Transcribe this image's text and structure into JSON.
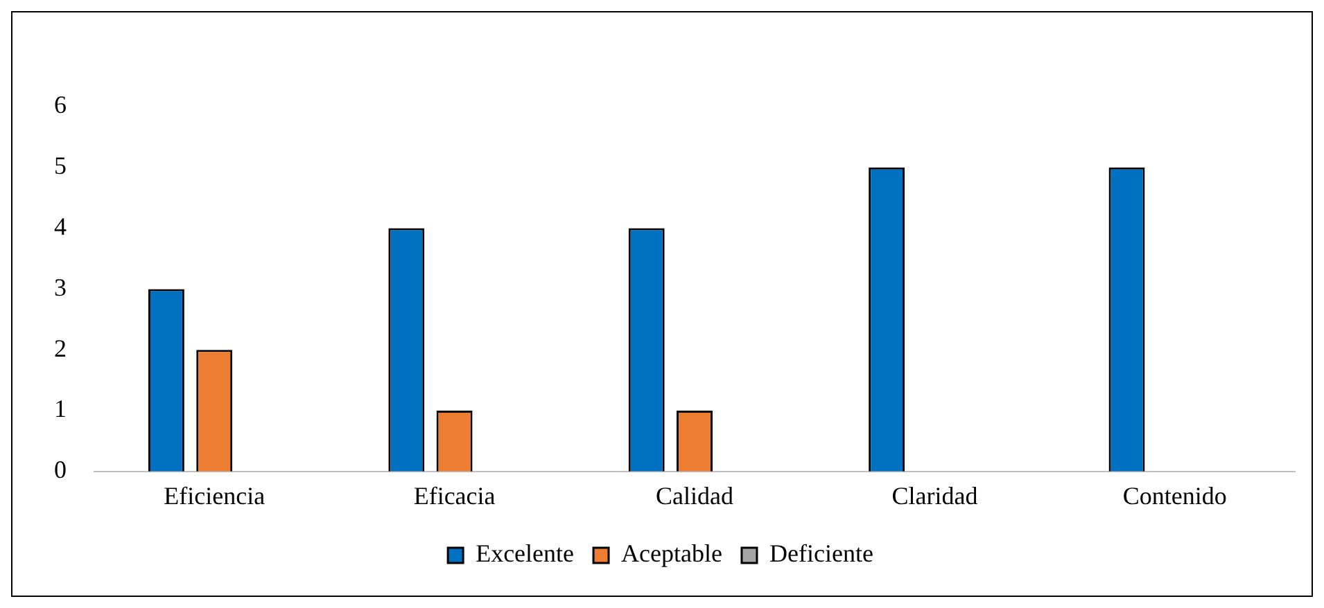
{
  "chart_data": {
    "type": "bar",
    "categories": [
      "Eficiencia",
      "Eficacia",
      "Calidad",
      "Claridad",
      "Contenido"
    ],
    "series": [
      {
        "name": "Excelente",
        "color": "#0070c0",
        "values": [
          3,
          4,
          4,
          5,
          5
        ]
      },
      {
        "name": "Aceptable",
        "color": "#ed7d31",
        "values": [
          2,
          1,
          1,
          0,
          0
        ]
      },
      {
        "name": "Deficiente",
        "color": "#a5a5a5",
        "values": [
          0,
          0,
          0,
          0,
          0
        ]
      }
    ],
    "ylim": [
      0,
      6
    ],
    "yticks": [
      0,
      1,
      2,
      3,
      4,
      5,
      6
    ],
    "grid": false,
    "legend": "bottom"
  }
}
